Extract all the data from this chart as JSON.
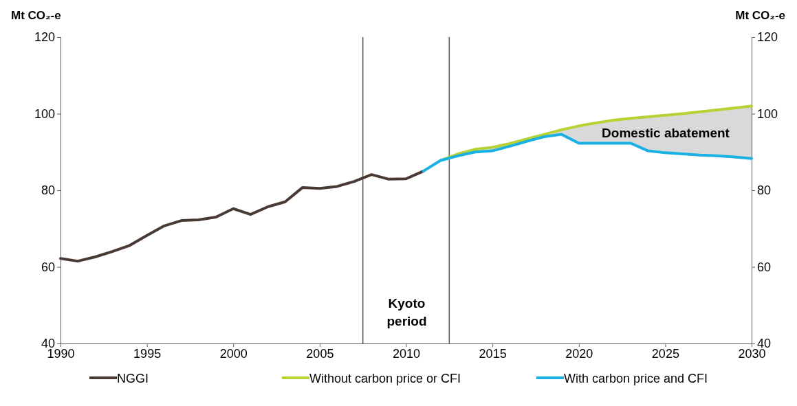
{
  "chart_data": {
    "type": "line",
    "ylabel": "Mt CO₂-e",
    "y2label": "Mt CO₂-e",
    "x": [
      1990,
      1991,
      1992,
      1993,
      1994,
      1995,
      1996,
      1997,
      1998,
      1999,
      2000,
      2001,
      2002,
      2003,
      2004,
      2005,
      2006,
      2007,
      2008,
      2009,
      2010,
      2011
    ],
    "xlim": [
      1990,
      2030
    ],
    "xticks": [
      1990,
      1995,
      2000,
      2005,
      2010,
      2015,
      2020,
      2025,
      2030
    ],
    "ylim": [
      40,
      120
    ],
    "yticks": [
      40,
      60,
      80,
      100,
      120
    ],
    "y2lim": [
      40,
      120
    ],
    "y2ticks": [
      40,
      60,
      80,
      100,
      120
    ],
    "series": [
      {
        "name": "NGGI",
        "color": "#4a3a35",
        "values": [
          62.2,
          61.5,
          62.6,
          64,
          65.6,
          68.2,
          70.7,
          72.1,
          72.3,
          73,
          75.2,
          73.7,
          75.7,
          77,
          80.7,
          80.5,
          81,
          82.3,
          84.1,
          82.9,
          83,
          85
        ]
      },
      {
        "name": "Without carbon price or CFI",
        "color": "#b5d334",
        "x": [
          2012,
          2013,
          2014,
          2015,
          2016,
          2017,
          2018,
          2019,
          2020,
          2021,
          2022,
          2023,
          2024,
          2025,
          2026,
          2027,
          2028,
          2029,
          2030
        ],
        "values": [
          87.8,
          89.5,
          90.7,
          91.2,
          92.2,
          93.4,
          94.6,
          95.8,
          96.8,
          97.6,
          98.3,
          98.8,
          99.2,
          99.6,
          100,
          100.5,
          101,
          101.5,
          102
        ],
        "lower": [
          87.8,
          89,
          90,
          90.3,
          91.5,
          92.8,
          94,
          94.6,
          92.3,
          92.3,
          92.3,
          92.3,
          90.3,
          89.8,
          89.5,
          89.2,
          89,
          88.7,
          88.3
        ],
        "upper": [
          87.8,
          89.5,
          90.7,
          91.2,
          92.2,
          93.4,
          94.6,
          95.8,
          96.8,
          97.6,
          98.3,
          98.8,
          99.2,
          99.6,
          100,
          100.5,
          101,
          101.5,
          102
        ]
      },
      {
        "name": "With carbon price and CFI",
        "color": "#19b1e3",
        "x": [
          2011,
          2012,
          2013,
          2014,
          2015,
          2016,
          2017,
          2018,
          2019,
          2020,
          2021,
          2022,
          2023,
          2024,
          2025,
          2026,
          2027,
          2028,
          2029,
          2030
        ],
        "values": [
          85,
          87.8,
          89,
          90,
          90.3,
          91.5,
          92.8,
          94,
          94.6,
          92.3,
          92.3,
          92.3,
          92.3,
          90.3,
          89.8,
          89.5,
          89.2,
          89,
          88.7,
          88.3
        ]
      }
    ],
    "ref_lines": [
      {
        "axis": "x",
        "value": 2007.5,
        "color": "#595959"
      },
      {
        "axis": "x",
        "value": 2012.5,
        "color": "#595959"
      }
    ],
    "annotations": [
      "Kyoto period",
      "Domestic abatement"
    ],
    "legend": "bottom",
    "grid": false
  }
}
